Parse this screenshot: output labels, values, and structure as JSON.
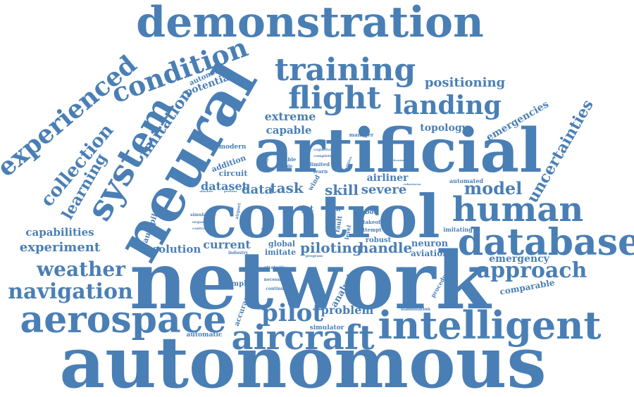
{
  "colors": {
    "word": "#4a7fb5",
    "background": "#ffffff"
  },
  "words": [
    {
      "text": "autonomous",
      "weight": 100,
      "rotation": 0
    },
    {
      "text": "network",
      "weight": 100,
      "rotation": 0
    },
    {
      "text": "artificial",
      "weight": 80,
      "rotation": 0
    },
    {
      "text": "control",
      "weight": 80,
      "rotation": 0
    },
    {
      "text": "neural",
      "weight": 80,
      "rotation": -60
    },
    {
      "text": "demonstration",
      "weight": 62,
      "rotation": 0
    },
    {
      "text": "intelligent",
      "weight": 55,
      "rotation": 0
    },
    {
      "text": "aerospace",
      "weight": 52,
      "rotation": 0
    },
    {
      "text": "database",
      "weight": 50,
      "rotation": 0
    },
    {
      "text": "aircraft",
      "weight": 48,
      "rotation": 0
    },
    {
      "text": "system",
      "weight": 48,
      "rotation": -60
    },
    {
      "text": "human",
      "weight": 46,
      "rotation": 0
    },
    {
      "text": "training",
      "weight": 44,
      "rotation": 0
    },
    {
      "text": "flight",
      "weight": 44,
      "rotation": 0
    },
    {
      "text": "landing",
      "weight": 38,
      "rotation": 0
    },
    {
      "text": "condition",
      "weight": 38,
      "rotation": -20
    },
    {
      "text": "experienced",
      "weight": 38,
      "rotation": -40
    },
    {
      "text": "approach",
      "weight": 32,
      "rotation": 0
    },
    {
      "text": "pilot",
      "weight": 34,
      "rotation": 0
    },
    {
      "text": "navigation",
      "weight": 30,
      "rotation": 0
    },
    {
      "text": "weather",
      "weight": 28,
      "rotation": 0
    },
    {
      "text": "collection",
      "weight": 28,
      "rotation": -50
    },
    {
      "text": "learning",
      "weight": 24,
      "rotation": -60
    },
    {
      "text": "imitation",
      "weight": 24,
      "rotation": -55
    },
    {
      "text": "uncertainties",
      "weight": 22,
      "rotation": -60
    },
    {
      "text": "model",
      "weight": 24,
      "rotation": 0
    },
    {
      "text": "experiment",
      "weight": 20,
      "rotation": 0
    },
    {
      "text": "positioning",
      "weight": 18,
      "rotation": 0
    },
    {
      "text": "emergencies",
      "weight": 15,
      "rotation": -30
    },
    {
      "text": "extreme",
      "weight": 16,
      "rotation": 0
    },
    {
      "text": "capable",
      "weight": 15,
      "rotation": 0
    },
    {
      "text": "potential",
      "weight": 15,
      "rotation": -20
    },
    {
      "text": "autonomy",
      "weight": 11,
      "rotation": -25
    },
    {
      "text": "topology",
      "weight": 14,
      "rotation": 0
    },
    {
      "text": "capabilities",
      "weight": 16,
      "rotation": 0
    },
    {
      "text": "skill",
      "weight": 20,
      "rotation": 0
    },
    {
      "text": "severe",
      "weight": 18,
      "rotation": 0
    },
    {
      "text": "task",
      "weight": 20,
      "rotation": 0
    },
    {
      "text": "data",
      "weight": 18,
      "rotation": 0
    },
    {
      "text": "dataset",
      "weight": 16,
      "rotation": 0
    },
    {
      "text": "circuit",
      "weight": 12,
      "rotation": 0
    },
    {
      "text": "addition",
      "weight": 12,
      "rotation": -20
    },
    {
      "text": "modern",
      "weight": 10,
      "rotation": 0
    },
    {
      "text": "piloting",
      "weight": 20,
      "rotation": 0
    },
    {
      "text": "handle",
      "weight": 20,
      "rotation": 0
    },
    {
      "text": "current",
      "weight": 16,
      "rotation": 0
    },
    {
      "text": "solution",
      "weight": 15,
      "rotation": 0
    },
    {
      "text": "emergency",
      "weight": 15,
      "rotation": 0
    },
    {
      "text": "comparable",
      "weight": 13,
      "rotation": -10
    },
    {
      "text": "problem",
      "weight": 16,
      "rotation": 0
    },
    {
      "text": "analysis",
      "weight": 13,
      "rotation": -60
    },
    {
      "text": "accuracy",
      "weight": 11,
      "rotation": -70
    },
    {
      "text": "autopilot",
      "weight": 12,
      "rotation": -70
    },
    {
      "text": "airliner",
      "weight": 14,
      "rotation": 0
    },
    {
      "text": "neuron",
      "weight": 13,
      "rotation": 0
    },
    {
      "text": "aviation",
      "weight": 12,
      "rotation": 0
    },
    {
      "text": "robust",
      "weight": 11,
      "rotation": 0
    },
    {
      "text": "global",
      "weight": 11,
      "rotation": 0
    },
    {
      "text": "imitate",
      "weight": 11,
      "rotation": 0
    },
    {
      "text": "example",
      "weight": 10,
      "rotation": 0
    },
    {
      "text": "simulator",
      "weight": 10,
      "rotation": 0
    },
    {
      "text": "automatic",
      "weight": 10,
      "rotation": 0
    },
    {
      "text": "automated",
      "weight": 9,
      "rotation": 0
    },
    {
      "text": "manager",
      "weight": 8,
      "rotation": 0
    },
    {
      "text": "procedure",
      "weight": 9,
      "rotation": -60
    },
    {
      "text": "imitating",
      "weight": 8,
      "rotation": 0
    },
    {
      "text": "stabilization",
      "weight": 7,
      "rotation": 0
    },
    {
      "text": "attempt",
      "weight": 8,
      "rotation": 0
    },
    {
      "text": "takeoff",
      "weight": 8,
      "rotation": 0
    },
    {
      "text": "robot",
      "weight": 9,
      "rotation": 0
    },
    {
      "text": "fault",
      "weight": 9,
      "rotation": -80
    },
    {
      "text": "level",
      "weight": 9,
      "rotation": -80
    },
    {
      "text": "ann",
      "weight": 9,
      "rotation": 0
    },
    {
      "text": "jet",
      "weight": 11,
      "rotation": 0
    },
    {
      "text": "wind",
      "weight": 10,
      "rotation": -60
    },
    {
      "text": "learn",
      "weight": 8,
      "rotation": 0
    },
    {
      "text": "limited",
      "weight": 8,
      "rotation": 0
    },
    {
      "text": "unable",
      "weight": 8,
      "rotation": 0
    },
    {
      "text": "enable",
      "weight": 7,
      "rotation": 0
    },
    {
      "text": "introduce",
      "weight": 8,
      "rotation": -80
    },
    {
      "text": "airport",
      "weight": 7,
      "rotation": -80
    },
    {
      "text": "industry",
      "weight": 7,
      "rotation": 0
    },
    {
      "text": "program",
      "weight": 6,
      "rotation": 0
    },
    {
      "text": "strategic",
      "weight": 7,
      "rotation": 0
    },
    {
      "text": "necessary",
      "weight": 7,
      "rotation": 0
    },
    {
      "text": "continuous",
      "weight": 7,
      "rotation": 0
    },
    {
      "text": "simulation",
      "weight": 7,
      "rotation": 0
    },
    {
      "text": "sequence",
      "weight": 6,
      "rotation": 0
    },
    {
      "text": "controller",
      "weight": 6,
      "rotation": 0
    },
    {
      "text": "absolute",
      "weight": 5,
      "rotation": 0
    },
    {
      "text": "perform",
      "weight": 5,
      "rotation": 0
    },
    {
      "text": "cognitive",
      "weight": 6,
      "rotation": 0
    },
    {
      "text": "complete",
      "weight": 6,
      "rotation": 0
    },
    {
      "text": "abilities",
      "weight": 6,
      "rotation": -70
    },
    {
      "text": "navigate",
      "weight": 5,
      "rotation": -70
    },
    {
      "text": "elevator",
      "weight": 5,
      "rotation": 0
    },
    {
      "text": "robustness",
      "weight": 5,
      "rotation": 0
    },
    {
      "text": "cycle",
      "weight": 5,
      "rotation": 0
    },
    {
      "text": "difference",
      "weight": 4,
      "rotation": 0
    }
  ]
}
